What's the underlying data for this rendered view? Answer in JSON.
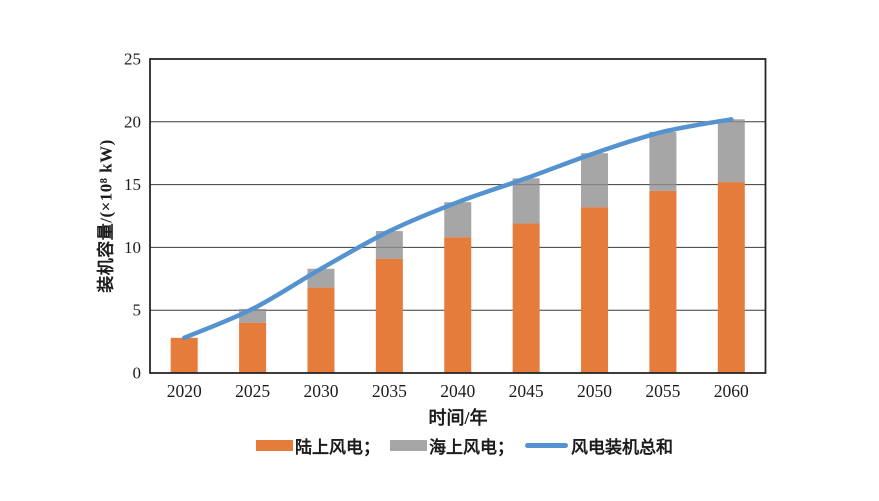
{
  "figure": {
    "background": "#ffffff",
    "frame_color": "#262626",
    "grid_color": "#3c3c3c",
    "text_color": "#1c1c1c"
  },
  "chart_data": {
    "type": "bar",
    "subtype": "stacked-bar-with-line",
    "title": "",
    "categories": [
      "2020",
      "2025",
      "2030",
      "2035",
      "2040",
      "2045",
      "2050",
      "2055",
      "2060"
    ],
    "series": [
      {
        "name": "陆上风电",
        "type": "bar",
        "stack": "capacity",
        "color": "#E57C3B",
        "values": [
          2.8,
          4.0,
          6.8,
          9.1,
          10.8,
          11.9,
          13.2,
          14.5,
          15.2
        ]
      },
      {
        "name": "海上风电",
        "type": "bar",
        "stack": "capacity",
        "color": "#A6A6A6",
        "values": [
          0,
          1.1,
          1.5,
          2.2,
          2.8,
          3.6,
          4.3,
          4.7,
          5.0
        ]
      },
      {
        "name": "风电装机总和",
        "type": "line",
        "color": "#5593D0",
        "values": [
          2.8,
          5.1,
          8.3,
          11.3,
          13.6,
          15.5,
          17.5,
          19.2,
          20.2
        ]
      }
    ],
    "xlabel": "时间/年",
    "ylabel": "装机容量/(×10⁸ kW)",
    "ylim": [
      0,
      25
    ],
    "yticks": [
      "0",
      "5",
      "10",
      "15",
      "20",
      "25"
    ],
    "grid": true,
    "legend_position": "bottom"
  },
  "legend": {
    "items": [
      {
        "label": "陆上风电；",
        "swatch": "rect",
        "color": "#E57C3B"
      },
      {
        "label": "海上风电；",
        "swatch": "rect",
        "color": "#A6A6A6"
      },
      {
        "label": "风电装机总和",
        "swatch": "line",
        "color": "#5593D0"
      }
    ]
  }
}
